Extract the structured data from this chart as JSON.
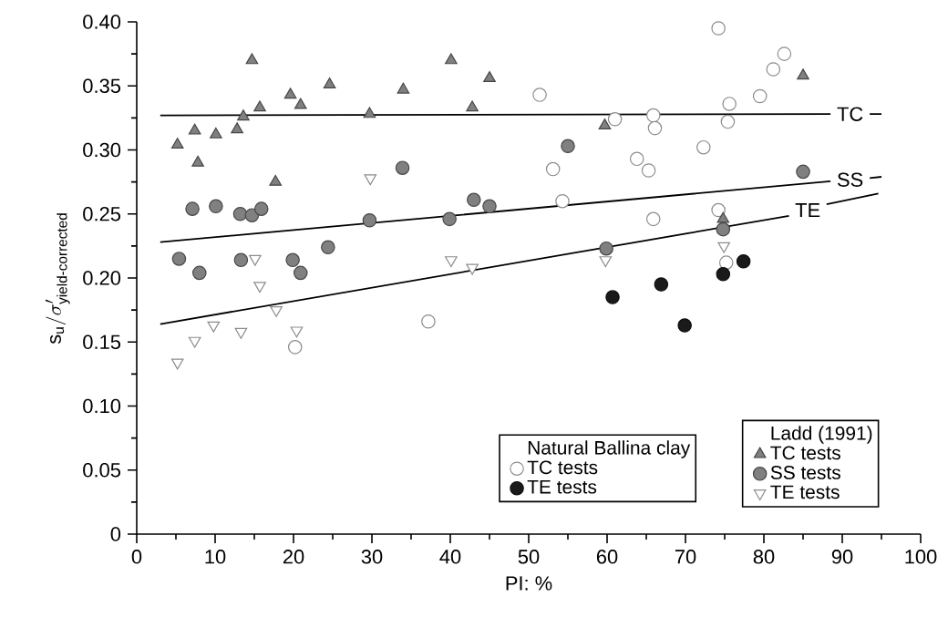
{
  "chart_data": {
    "type": "scatter",
    "xlabel": "PI: %",
    "ylabel": "\\mathsf{s}_{\\mathsf{u}}/\\sigma'_{\\text{\\sffamily yield-corrected}}",
    "legend": "bottom right",
    "grid": false,
    "xlim": [
      0,
      100
    ],
    "xticks": [
      0,
      10,
      20,
      30,
      40,
      50,
      60,
      70,
      80,
      90,
      100
    ],
    "ylim": [
      0,
      0.4
    ],
    "yticks": [
      0,
      {
        "value": 0.05,
        "label": "0.05"
      },
      {
        "value": 0.1,
        "label": "0.10"
      },
      {
        "value": 0.15,
        "label": "0.15"
      },
      {
        "value": 0.2,
        "label": "0.20"
      },
      {
        "value": 0.25,
        "label": "0.25"
      },
      {
        "value": 0.3,
        "label": "0.30"
      },
      {
        "value": 0.35,
        "label": "0.35"
      },
      {
        "value": 0.4,
        "label": "0.40"
      }
    ],
    "series": [
      {
        "name": "Natural Ballina clay",
        "marker": "none"
      },
      {
        "name": "TC tests",
        "marker": "circle",
        "color": "#ffffff",
        "x": [
          20.2,
          37.2,
          51.4,
          74.2,
          82.6,
          81.2,
          79.5,
          75.6,
          75.4,
          61,
          65.9,
          66.1,
          72.3,
          53.1,
          54.3,
          63.8,
          65.3,
          65.9,
          74.2,
          75.2
        ],
        "values": [
          0.146,
          0.166,
          0.343,
          0.395,
          0.375,
          0.363,
          0.342,
          0.336,
          0.322,
          0.324,
          0.327,
          0.317,
          0.302,
          0.285,
          0.26,
          0.293,
          0.284,
          0.246,
          0.253,
          0.212
        ]
      },
      {
        "name": "TE tests",
        "marker": "circle",
        "color": "#1a1a1a",
        "x": [
          60.7,
          66.9,
          69.9,
          74.8,
          77.4
        ],
        "values": [
          0.185,
          0.195,
          0.163,
          0.203,
          0.213
        ]
      },
      {
        "name": "Ladd (1991)",
        "marker": "none"
      },
      {
        "name": "TC tests",
        "marker": "triangle",
        "color": "#808080",
        "x": [
          5.2,
          7.4,
          7.8,
          10.1,
          12.8,
          13.6,
          14.7,
          15.7,
          17.7,
          19.6,
          20.9,
          24.6,
          29.7,
          34,
          40.1,
          42.8,
          45,
          59.7,
          85,
          74.8
        ],
        "values": [
          0.304,
          0.315,
          0.29,
          0.312,
          0.316,
          0.326,
          0.37,
          0.333,
          0.275,
          0.343,
          0.335,
          0.351,
          0.328,
          0.347,
          0.37,
          0.333,
          0.356,
          0.319,
          0.358,
          0.246
        ]
      },
      {
        "name": "SS tests",
        "marker": "circle",
        "color": "#808080",
        "x": [
          5.4,
          8,
          7.1,
          10.1,
          13.2,
          14.7,
          15.9,
          13.3,
          19.9,
          20.9,
          24.4,
          29.7,
          33.9,
          39.9,
          43,
          45,
          55,
          59.9,
          74.8,
          85
        ],
        "values": [
          0.215,
          0.204,
          0.254,
          0.256,
          0.25,
          0.249,
          0.254,
          0.214,
          0.214,
          0.204,
          0.224,
          0.245,
          0.286,
          0.246,
          0.261,
          0.256,
          0.303,
          0.223,
          0.238,
          0.283
        ]
      },
      {
        "name": "TE tests",
        "marker": "triangle-down",
        "color": "#ffffff",
        "x": [
          5.2,
          7.4,
          9.8,
          13.3,
          15.1,
          15.7,
          17.8,
          20.4,
          29.8,
          40.1,
          42.8,
          59.8,
          74.9
        ],
        "values": [
          0.134,
          0.151,
          0.163,
          0.158,
          0.215,
          0.194,
          0.175,
          0.159,
          0.278,
          0.214,
          0.208,
          0.214,
          0.225
        ]
      },
      {
        "name": "TC",
        "type": "line",
        "color": "#000000",
        "line_style": "solid",
        "x": [
          3,
          88.5,
          91,
          93.5,
          95
        ],
        "values": [
          0.327,
          0.328,
          null,
          0.328,
          0.328
        ]
      },
      {
        "name": "SS",
        "type": "line",
        "color": "#000000",
        "line_style": "solid",
        "x": [
          3,
          88.5,
          91,
          93.5,
          95
        ],
        "values": [
          0.228,
          0.2755,
          null,
          0.278,
          0.279
        ]
      },
      {
        "name": "TE",
        "type": "line",
        "color": "#000000",
        "line_style": "solid",
        "x": [
          3,
          83.2,
          85.6,
          88,
          94.6
        ],
        "values": [
          0.164,
          0.2485,
          null,
          0.2575,
          0.266
        ]
      }
    ]
  }
}
